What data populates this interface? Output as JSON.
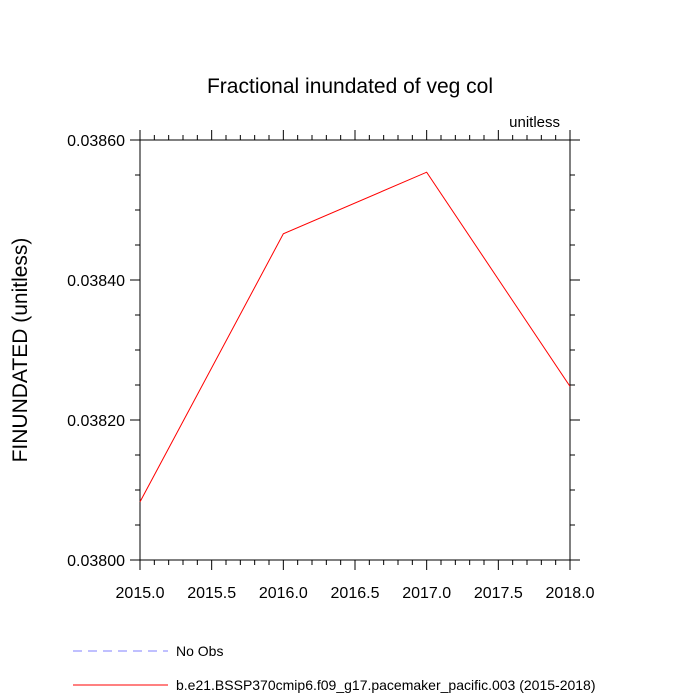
{
  "chart_data": {
    "type": "line",
    "title": "Fractional inundated of veg col",
    "units_label": "unitless",
    "ylabel": "FINUNDATED  (unitless)",
    "xlabel": "",
    "xlim": [
      2015.0,
      2018.0
    ],
    "ylim": [
      0.038,
      0.0386
    ],
    "x_ticks": [
      "2015.0",
      "2015.5",
      "2016.0",
      "2016.5",
      "2017.0",
      "2017.5",
      "2018.0"
    ],
    "x_tick_values": [
      2015.0,
      2015.5,
      2016.0,
      2016.5,
      2017.0,
      2017.5,
      2018.0
    ],
    "y_ticks": [
      "0.03800",
      "0.03820",
      "0.03840",
      "0.03860"
    ],
    "y_tick_values": [
      0.038,
      0.0382,
      0.0384,
      0.0386
    ],
    "y_minor_step": 5e-05,
    "x_minor_step": 0.1,
    "series": [
      {
        "name": "b.e21.BSSP370cmip6.f09_g17.pacemaker_pacific.003 (2015-2018)",
        "color": "#ff0000",
        "dash": "solid",
        "x": [
          2015.0,
          2016.0,
          2017.0,
          2018.0
        ],
        "y": [
          0.038083,
          0.038466,
          0.038554,
          0.038248
        ]
      }
    ],
    "legend": [
      {
        "label": "No Obs",
        "color": "#8080ff",
        "dash": "dashed"
      },
      {
        "label": "b.e21.BSSP370cmip6.f09_g17.pacemaker_pacific.003 (2015-2018)",
        "color": "#ff0000",
        "dash": "solid"
      }
    ],
    "legend_placement": "bottom",
    "grid": false
  }
}
